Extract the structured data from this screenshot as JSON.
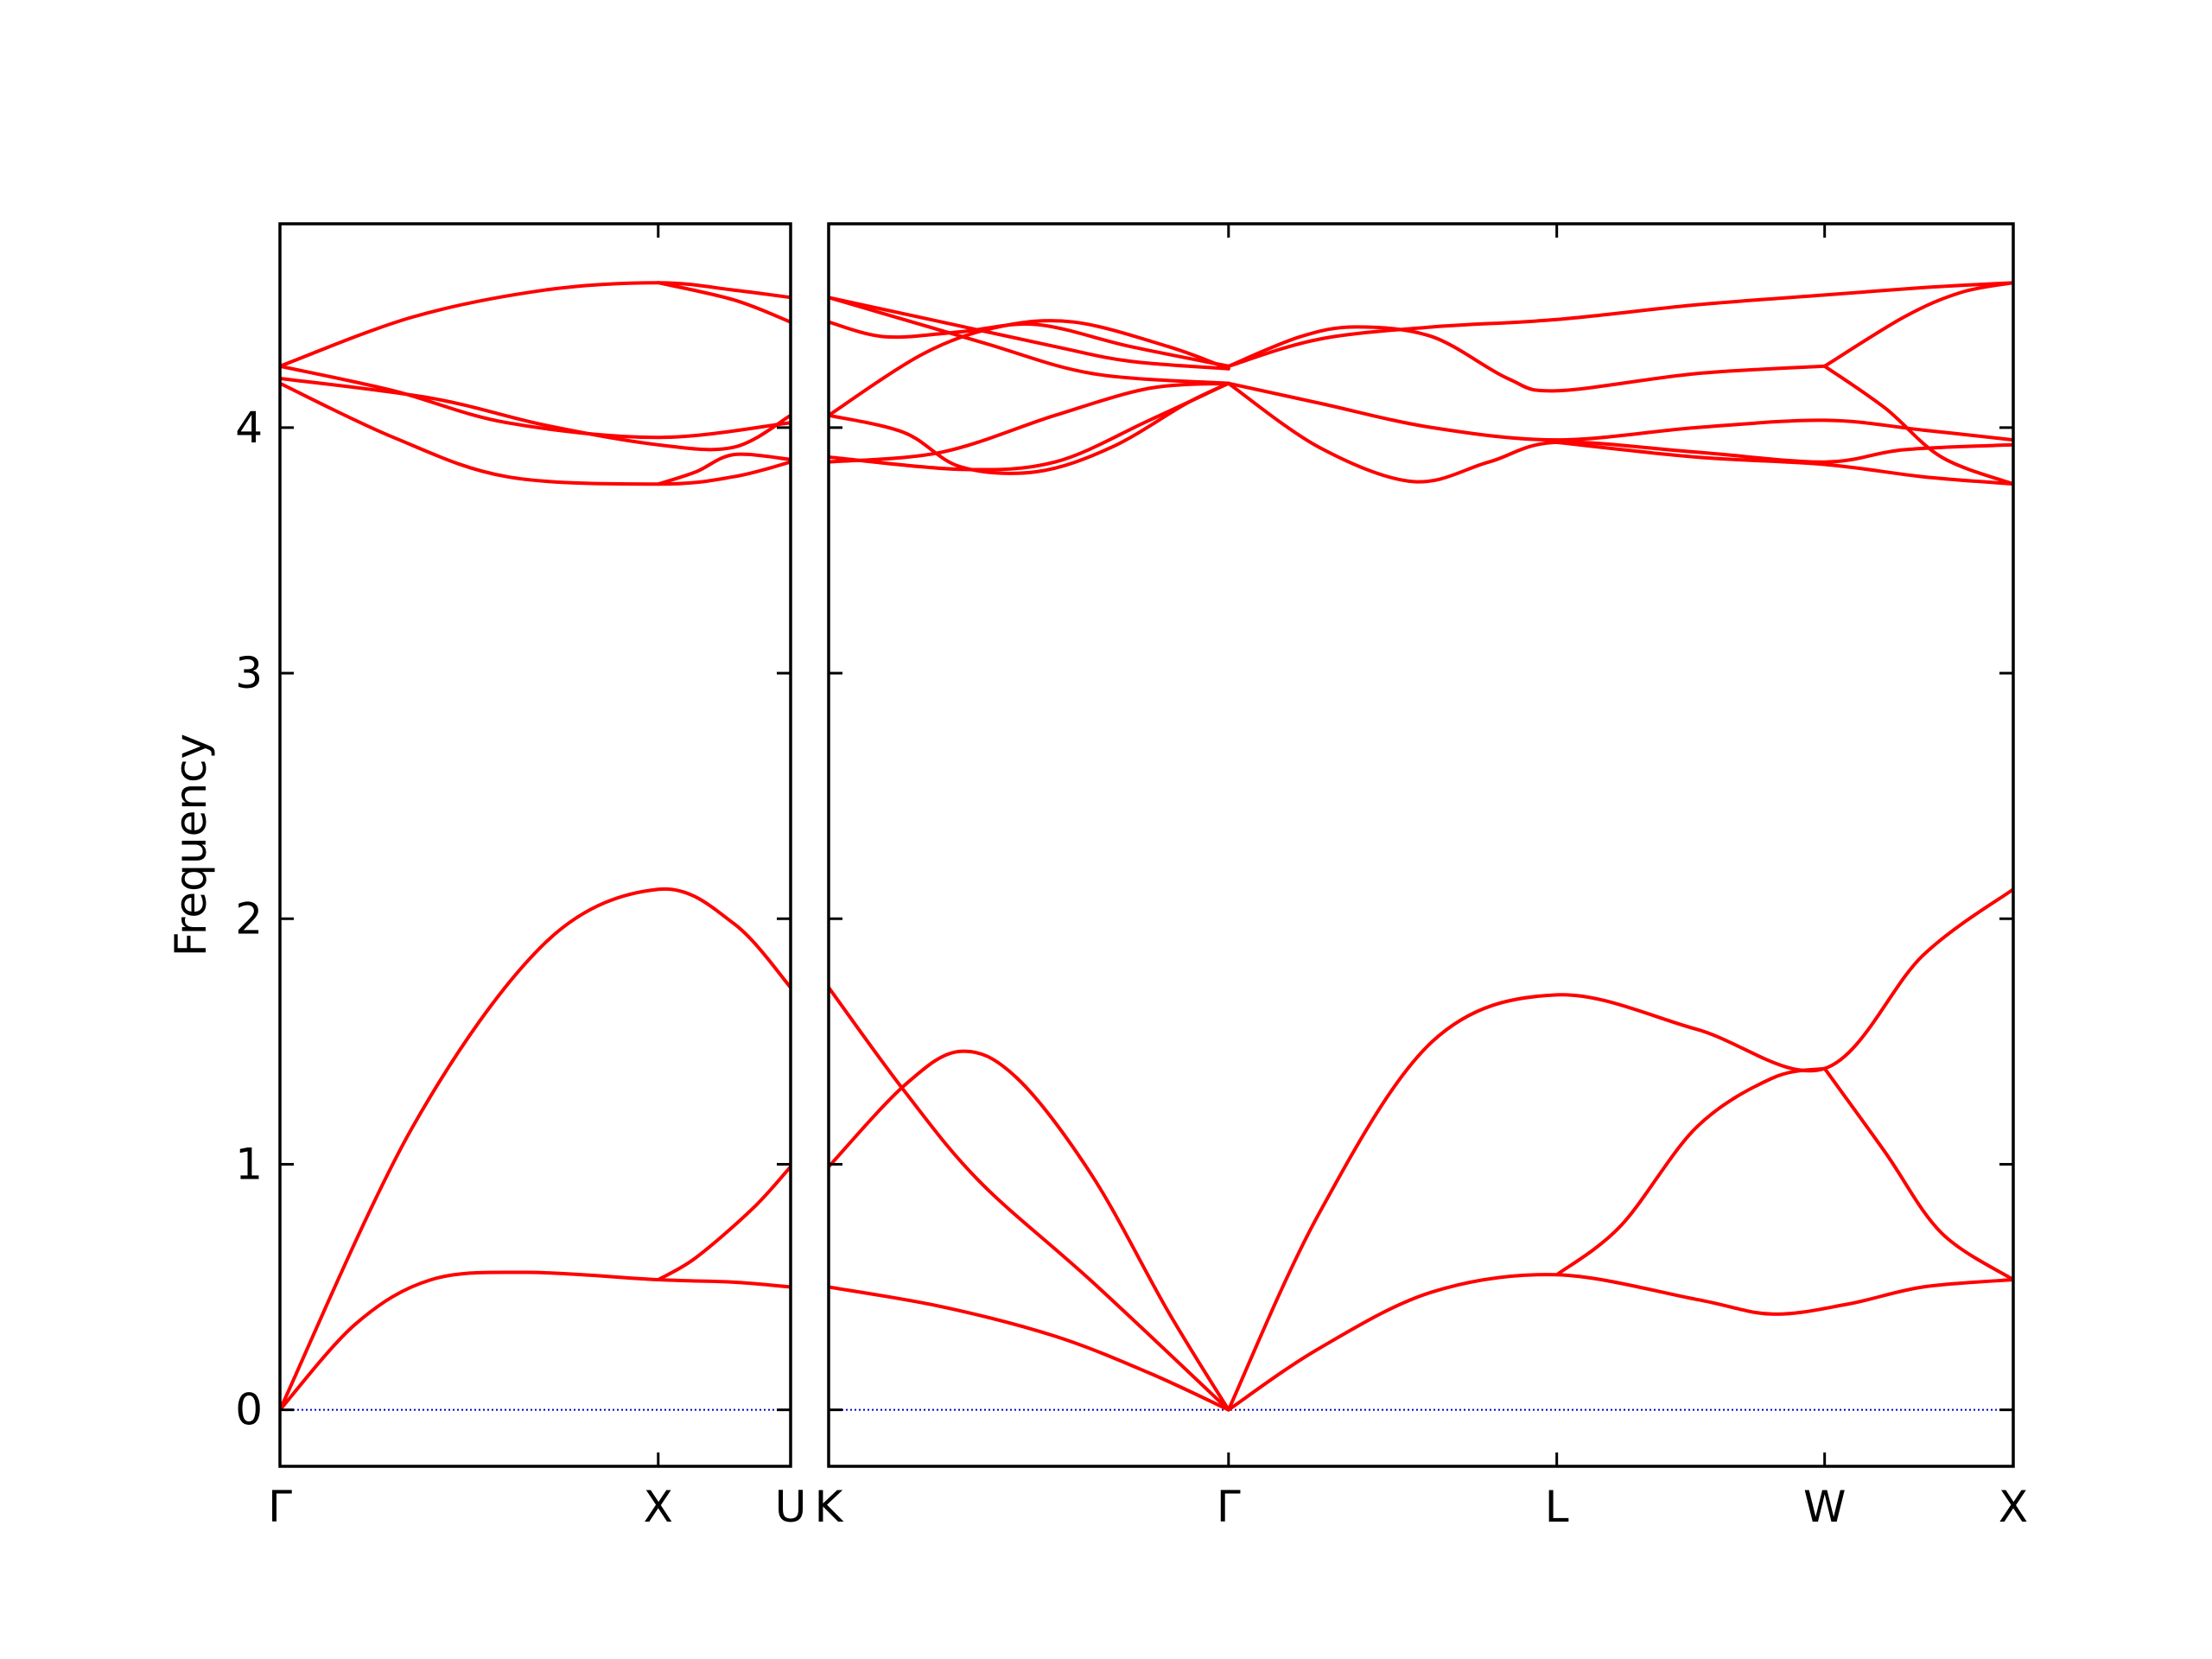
{
  "chart_data": {
    "type": "line",
    "title": "",
    "ylabel": "Frequency",
    "ylim": [
      -0.23,
      4.83
    ],
    "yticks": [
      0,
      1,
      2,
      3,
      4
    ],
    "grid": false,
    "legend": "none",
    "colors": {
      "band": "#ff0000",
      "zero_line": "#0000cc",
      "axes": "#000000"
    },
    "panels": [
      {
        "id": "left",
        "xlim": [
          0,
          1.35
        ],
        "xticks": [
          {
            "x": 0,
            "label": "Γ"
          },
          {
            "x": 1.0,
            "label": "X"
          },
          {
            "x": 1.35,
            "label": "U"
          }
        ],
        "series": [
          {
            "points": [
              [
                0,
                0
              ],
              [
                0.35,
                1.15
              ],
              [
                0.7,
                1.9
              ],
              [
                1.0,
                2.12
              ],
              [
                1.2,
                1.98
              ],
              [
                1.35,
                1.72
              ]
            ]
          },
          {
            "points": [
              [
                0,
                0
              ],
              [
                0.2,
                0.35
              ],
              [
                0.4,
                0.53
              ],
              [
                0.65,
                0.56
              ],
              [
                1.0,
                0.53
              ],
              [
                1.2,
                0.52
              ],
              [
                1.35,
                0.5
              ]
            ]
          },
          {
            "points": [
              [
                1.0,
                0.53
              ],
              [
                1.1,
                0.62
              ],
              [
                1.25,
                0.82
              ],
              [
                1.35,
                0.99
              ]
            ]
          },
          {
            "points": [
              [
                0,
                4.25
              ],
              [
                0.35,
                4.45
              ],
              [
                0.7,
                4.56
              ],
              [
                1.0,
                4.59
              ],
              [
                1.2,
                4.56
              ],
              [
                1.35,
                4.53
              ]
            ]
          },
          {
            "points": [
              [
                1.0,
                4.59
              ],
              [
                1.2,
                4.52
              ],
              [
                1.35,
                4.43
              ]
            ]
          },
          {
            "points": [
              [
                0,
                4.25
              ],
              [
                0.3,
                4.15
              ],
              [
                0.6,
                4.02
              ],
              [
                1.0,
                3.96
              ],
              [
                1.35,
                4.02
              ]
            ]
          },
          {
            "points": [
              [
                0,
                4.2
              ],
              [
                0.4,
                4.12
              ],
              [
                0.7,
                4.01
              ],
              [
                1.0,
                3.93
              ],
              [
                1.2,
                3.92
              ],
              [
                1.35,
                4.05
              ]
            ]
          },
          {
            "points": [
              [
                0,
                4.18
              ],
              [
                0.3,
                3.96
              ],
              [
                0.6,
                3.8
              ],
              [
                1.0,
                3.77
              ],
              [
                1.2,
                3.8
              ],
              [
                1.35,
                3.86
              ]
            ]
          },
          {
            "points": [
              [
                1.0,
                3.77
              ],
              [
                1.1,
                3.82
              ],
              [
                1.2,
                3.89
              ],
              [
                1.35,
                3.87
              ]
            ]
          }
        ]
      },
      {
        "id": "right",
        "xlim": [
          0,
          3.14
        ],
        "xticks": [
          {
            "x": 0,
            "label": "K"
          },
          {
            "x": 1.06,
            "label": "Γ"
          },
          {
            "x": 1.93,
            "label": "L"
          },
          {
            "x": 2.64,
            "label": "W"
          },
          {
            "x": 3.14,
            "label": "X"
          }
        ],
        "series": [
          {
            "points": [
              [
                0,
                1.72
              ],
              [
                0.2,
                1.3
              ],
              [
                0.4,
                0.93
              ],
              [
                0.7,
                0.52
              ],
              [
                1.06,
                0
              ]
            ]
          },
          {
            "points": [
              [
                0,
                0.99
              ],
              [
                0.2,
                1.32
              ],
              [
                0.35,
                1.46
              ],
              [
                0.5,
                1.35
              ],
              [
                0.7,
                0.95
              ],
              [
                0.9,
                0.4
              ],
              [
                1.06,
                0
              ]
            ]
          },
          {
            "points": [
              [
                0,
                0.5
              ],
              [
                0.3,
                0.42
              ],
              [
                0.6,
                0.3
              ],
              [
                0.85,
                0.15
              ],
              [
                1.06,
                0
              ]
            ]
          },
          {
            "points": [
              [
                1.06,
                0
              ],
              [
                1.3,
                0.8
              ],
              [
                1.6,
                1.5
              ],
              [
                1.93,
                1.69
              ],
              [
                2.3,
                1.55
              ],
              [
                2.64,
                1.39
              ],
              [
                2.9,
                1.85
              ],
              [
                3.14,
                2.12
              ]
            ]
          },
          {
            "points": [
              [
                1.06,
                0
              ],
              [
                1.3,
                0.25
              ],
              [
                1.6,
                0.48
              ],
              [
                1.93,
                0.55
              ],
              [
                2.3,
                0.45
              ],
              [
                2.5,
                0.39
              ],
              [
                2.7,
                0.43
              ],
              [
                2.9,
                0.5
              ],
              [
                3.14,
                0.53
              ]
            ]
          },
          {
            "points": [
              [
                1.93,
                0.55
              ],
              [
                2.1,
                0.75
              ],
              [
                2.3,
                1.15
              ],
              [
                2.5,
                1.35
              ],
              [
                2.64,
                1.39
              ]
            ]
          },
          {
            "points": [
              [
                2.64,
                1.39
              ],
              [
                2.8,
                1.05
              ],
              [
                2.95,
                0.72
              ],
              [
                3.14,
                0.53
              ]
            ]
          },
          {
            "points": [
              [
                0,
                4.53
              ],
              [
                0.3,
                4.43
              ],
              [
                0.6,
                4.33
              ],
              [
                0.8,
                4.27
              ],
              [
                1.06,
                4.24
              ]
            ]
          },
          {
            "points": [
              [
                0,
                4.43
              ],
              [
                0.15,
                4.37
              ],
              [
                0.35,
                4.39
              ],
              [
                0.55,
                4.42
              ],
              [
                0.8,
                4.33
              ],
              [
                1.06,
                4.25
              ]
            ]
          },
          {
            "points": [
              [
                0,
                4.05
              ],
              [
                0.25,
                4.3
              ],
              [
                0.45,
                4.41
              ],
              [
                0.65,
                4.43
              ],
              [
                0.9,
                4.33
              ],
              [
                1.06,
                4.24
              ]
            ]
          },
          {
            "points": [
              [
                0,
                4.05
              ],
              [
                0.2,
                3.98
              ],
              [
                0.35,
                3.84
              ],
              [
                0.55,
                3.82
              ],
              [
                0.75,
                3.92
              ],
              [
                0.95,
                4.1
              ],
              [
                1.06,
                4.18
              ]
            ]
          },
          {
            "points": [
              [
                0,
                3.86
              ],
              [
                0.3,
                3.9
              ],
              [
                0.6,
                4.05
              ],
              [
                0.85,
                4.16
              ],
              [
                1.06,
                4.18
              ]
            ]
          },
          {
            "points": [
              [
                0,
                3.88
              ],
              [
                0.35,
                3.83
              ],
              [
                0.6,
                3.86
              ],
              [
                0.85,
                4.03
              ],
              [
                1.06,
                4.18
              ]
            ]
          },
          {
            "points": [
              [
                0,
                4.53
              ],
              [
                0.4,
                4.35
              ],
              [
                0.7,
                4.22
              ],
              [
                1.06,
                4.18
              ]
            ]
          },
          {
            "points": [
              [
                1.06,
                4.25
              ],
              [
                1.3,
                4.36
              ],
              [
                1.6,
                4.41
              ],
              [
                1.93,
                4.44
              ],
              [
                2.3,
                4.5
              ],
              [
                2.64,
                4.54
              ],
              [
                2.9,
                4.57
              ],
              [
                3.14,
                4.59
              ]
            ]
          },
          {
            "points": [
              [
                1.06,
                4.25
              ],
              [
                1.25,
                4.37
              ],
              [
                1.4,
                4.41
              ],
              [
                1.6,
                4.37
              ],
              [
                1.8,
                4.2
              ],
              [
                1.93,
                4.15
              ],
              [
                2.3,
                4.22
              ],
              [
                2.64,
                4.25
              ]
            ]
          },
          {
            "points": [
              [
                1.06,
                4.18
              ],
              [
                1.3,
                4.1
              ],
              [
                1.6,
                4.0
              ],
              [
                1.93,
                3.95
              ],
              [
                2.3,
                4.0
              ],
              [
                2.64,
                4.03
              ],
              [
                2.9,
                3.99
              ],
              [
                3.14,
                3.95
              ]
            ]
          },
          {
            "points": [
              [
                1.06,
                4.18
              ],
              [
                1.3,
                3.92
              ],
              [
                1.55,
                3.78
              ],
              [
                1.75,
                3.86
              ],
              [
                1.93,
                3.94
              ],
              [
                2.3,
                3.9
              ],
              [
                2.64,
                3.86
              ],
              [
                2.85,
                3.91
              ],
              [
                3.14,
                3.93
              ]
            ]
          },
          {
            "points": [
              [
                1.93,
                3.94
              ],
              [
                2.3,
                3.88
              ],
              [
                2.64,
                3.85
              ],
              [
                2.9,
                3.8
              ],
              [
                3.14,
                3.77
              ]
            ]
          },
          {
            "points": [
              [
                2.64,
                4.25
              ],
              [
                2.8,
                4.08
              ],
              [
                2.95,
                3.88
              ],
              [
                3.14,
                3.77
              ]
            ]
          },
          {
            "points": [
              [
                2.64,
                4.25
              ],
              [
                2.85,
                4.45
              ],
              [
                3.0,
                4.55
              ],
              [
                3.14,
                4.59
              ]
            ]
          }
        ]
      }
    ]
  }
}
